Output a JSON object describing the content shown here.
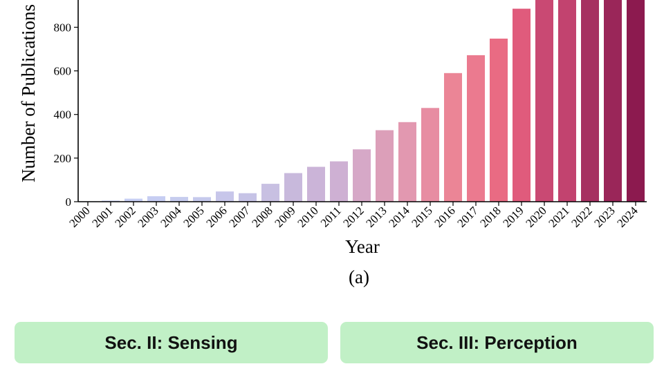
{
  "chart_data": {
    "type": "bar",
    "title": "",
    "xlabel": "Year",
    "ylabel": "Number of Publications",
    "categories": [
      "2000",
      "2001",
      "2002",
      "2003",
      "2004",
      "2005",
      "2006",
      "2007",
      "2008",
      "2009",
      "2010",
      "2011",
      "2012",
      "2013",
      "2014",
      "2015",
      "2016",
      "2017",
      "2018",
      "2019",
      "2020",
      "2021",
      "2022",
      "2023",
      "2024"
    ],
    "values": [
      2,
      5,
      14,
      25,
      22,
      21,
      47,
      39,
      82,
      131,
      160,
      185,
      240,
      328,
      365,
      430,
      590,
      672,
      748,
      885,
      1000,
      1000,
      1000,
      1000,
      1000
    ],
    "yticks": [
      0,
      200,
      400,
      600,
      800
    ],
    "ylim": [
      0,
      925
    ],
    "grid": false,
    "legend": "none",
    "colors": [
      "#c8cff4",
      "#c8cff4",
      "#c8cff4",
      "#c6cdf2",
      "#c6ccee",
      "#c5c9ec",
      "#c7c6ea",
      "#c6c3e6",
      "#c8c0e2",
      "#c8b9dc",
      "#cbb4d8",
      "#ceb0d3",
      "#d6a8c7",
      "#dc9fb9",
      "#e298b0",
      "#e78da2",
      "#eb8596",
      "#eb7a8f",
      "#e96b83",
      "#e05b7c",
      "#c94973",
      "#c2436f",
      "#a63061",
      "#9a2659",
      "#8c1a4f"
    ],
    "caption": "(a)"
  },
  "sections": [
    {
      "label": "Sec. II: Sensing"
    },
    {
      "label": "Sec. III: Perception"
    }
  ]
}
